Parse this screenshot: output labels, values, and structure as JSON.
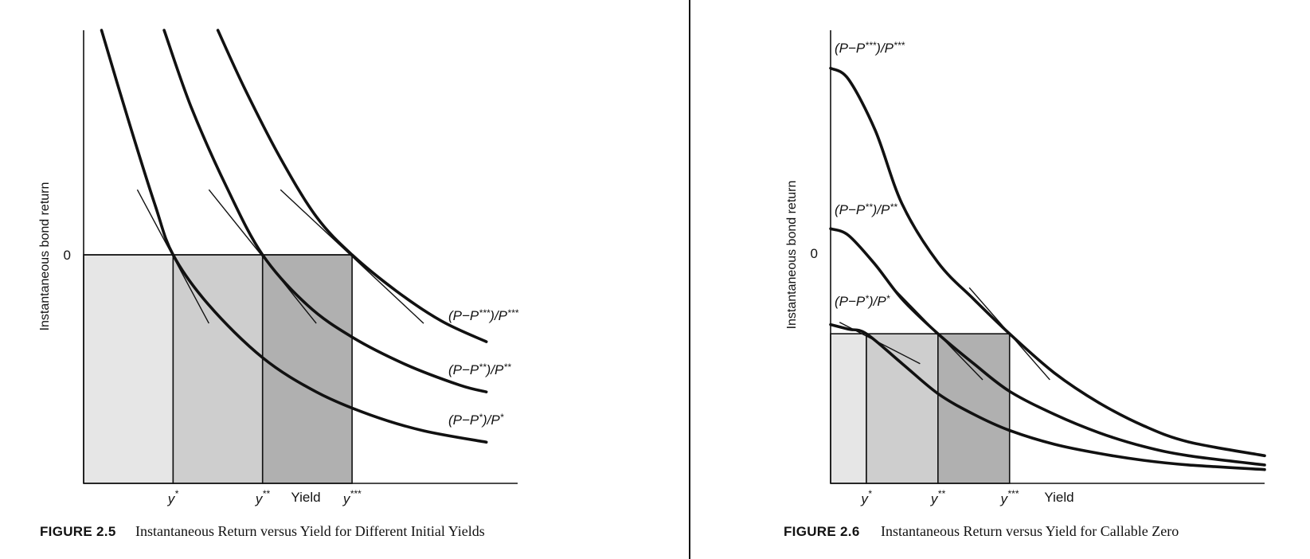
{
  "colors": {
    "ink": "#111111",
    "shade_light": "#e6e6e6",
    "shade_mid": "#cecece",
    "shade_dark": "#b0b0b0"
  },
  "chart_data": [
    {
      "type": "line",
      "figure_number": "FIGURE 2.5",
      "caption": "Instantaneous Return versus Yield for Different Initial Yields",
      "xlabel": "Yield",
      "ylabel": "Instantaneous bond return",
      "zero_label": "0",
      "x_ticks": [
        {
          "base": "y",
          "sup": "*",
          "x": 1.0
        },
        {
          "base": "y",
          "sup": "**",
          "x": 2.0
        },
        {
          "base": "y",
          "sup": "***",
          "x": 3.0
        }
      ],
      "xlim": [
        0,
        4.85
      ],
      "ylim": [
        -1.0,
        1.0
      ],
      "grid": false,
      "shaded_regions": [
        {
          "from": 0.0,
          "to": 1.0,
          "shade": "light"
        },
        {
          "from": 1.0,
          "to": 2.0,
          "shade": "mid"
        },
        {
          "from": 2.0,
          "to": 3.0,
          "shade": "dark"
        }
      ],
      "series": [
        {
          "name": "(P−P*)/P*",
          "label_base": "(P−P",
          "label_sup": "*",
          "label_end": ")/P",
          "label_sup2": "*",
          "x": [
            0.2,
            0.5,
            0.8,
            1.0,
            1.4,
            2.0,
            2.6,
            3.2,
            3.8,
            4.5
          ],
          "y": [
            1.0,
            0.6,
            0.22,
            0.0,
            -0.22,
            -0.45,
            -0.6,
            -0.7,
            -0.77,
            -0.82
          ]
        },
        {
          "name": "(P−P**)/P**",
          "label_base": "(P−P",
          "label_sup": "**",
          "label_end": ")/P",
          "label_sup2": "**",
          "x": [
            0.9,
            1.2,
            1.6,
            2.0,
            2.5,
            3.0,
            3.6,
            4.2,
            4.5
          ],
          "y": [
            1.0,
            0.66,
            0.3,
            0.0,
            -0.22,
            -0.36,
            -0.48,
            -0.57,
            -0.6
          ]
        },
        {
          "name": "(P−P***)/P***",
          "label_base": "(P−P",
          "label_sup": "***",
          "label_end": ")/P",
          "label_sup2": "***",
          "x": [
            1.5,
            1.8,
            2.2,
            2.6,
            3.0,
            3.5,
            4.0,
            4.5
          ],
          "y": [
            1.0,
            0.74,
            0.43,
            0.17,
            0.0,
            -0.16,
            -0.29,
            -0.38
          ]
        }
      ],
      "tangents": [
        {
          "x1": 0.6,
          "y1": 0.29,
          "x2": 1.4,
          "y2": -0.3
        },
        {
          "x1": 1.4,
          "y1": 0.29,
          "x2": 2.6,
          "y2": -0.3
        },
        {
          "x1": 2.2,
          "y1": 0.29,
          "x2": 3.8,
          "y2": -0.3
        }
      ]
    },
    {
      "type": "line",
      "figure_number": "FIGURE 2.6",
      "caption": "Instantaneous Return versus Yield for Callable Zero",
      "xlabel": "Yield",
      "ylabel": "Instantaneous bond return",
      "zero_label": "0",
      "x_ticks": [
        {
          "base": "y",
          "sup": "*",
          "x": 0.4
        },
        {
          "base": "y",
          "sup": "**",
          "x": 1.2
        },
        {
          "base": "y",
          "sup": "***",
          "x": 2.0
        }
      ],
      "xlim": [
        0,
        4.85
      ],
      "ylim": [
        -1.0,
        1.0
      ],
      "grid": false,
      "shaded_regions": [
        {
          "from": 0.0,
          "to": 0.4,
          "shade": "light",
          "top": -0.35
        },
        {
          "from": 0.4,
          "to": 1.2,
          "shade": "mid",
          "top": -0.35
        },
        {
          "from": 1.2,
          "to": 2.0,
          "shade": "dark",
          "top": -0.35
        }
      ],
      "series": [
        {
          "name": "(P−P***)/P***",
          "label_base": "(P−P",
          "label_sup": "***",
          "label_end": ")/P",
          "label_sup2": "***",
          "x": [
            0.0,
            0.2,
            0.5,
            0.8,
            1.2,
            1.6,
            2.0,
            2.5,
            3.0,
            3.5,
            4.0,
            4.85
          ],
          "y": [
            0.83,
            0.78,
            0.55,
            0.22,
            -0.04,
            -0.2,
            -0.35,
            -0.52,
            -0.65,
            -0.75,
            -0.82,
            -0.88
          ]
        },
        {
          "name": "(P−P**)/P**",
          "label_base": "(P−P",
          "label_sup": "**",
          "label_end": ")/P",
          "label_sup2": "**",
          "x": [
            0.0,
            0.2,
            0.5,
            0.8,
            1.2,
            1.6,
            2.0,
            2.5,
            3.0,
            3.5,
            4.0,
            4.85
          ],
          "y": [
            0.11,
            0.08,
            -0.05,
            -0.2,
            -0.35,
            -0.48,
            -0.6,
            -0.7,
            -0.78,
            -0.84,
            -0.88,
            -0.92
          ]
        },
        {
          "name": "(P−P*)/P*",
          "label_base": "(P−P",
          "label_sup": "*",
          "label_end": ")/P",
          "label_sup2": "*",
          "x": [
            0.0,
            0.2,
            0.4,
            0.8,
            1.2,
            1.6,
            2.0,
            2.5,
            3.0,
            3.5,
            4.0,
            4.85
          ],
          "y": [
            -0.31,
            -0.33,
            -0.35,
            -0.48,
            -0.61,
            -0.7,
            -0.77,
            -0.83,
            -0.87,
            -0.9,
            -0.92,
            -0.94
          ]
        }
      ],
      "tangents": [
        {
          "x1": 0.1,
          "y1": -0.3,
          "x2": 1.0,
          "y2": -0.48
        },
        {
          "x1": 0.7,
          "y1": -0.15,
          "x2": 1.7,
          "y2": -0.55
        },
        {
          "x1": 1.55,
          "y1": -0.15,
          "x2": 2.45,
          "y2": -0.55
        }
      ]
    }
  ]
}
